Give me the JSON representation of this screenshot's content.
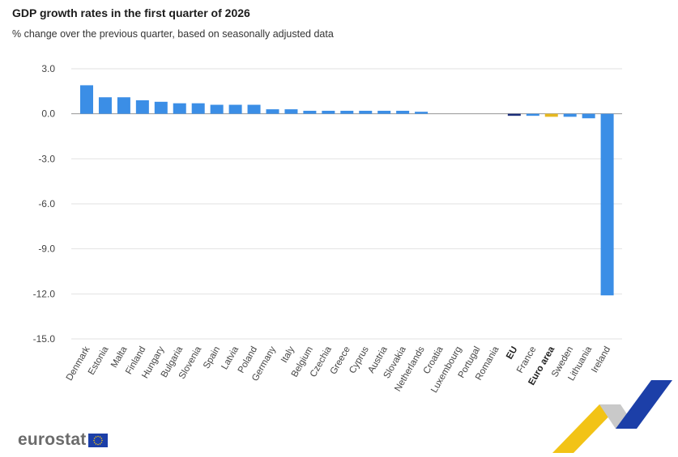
{
  "header": {
    "title": "GDP growth rates in the first quarter of 2026",
    "subtitle": "% change over the previous quarter, based on seasonally adjusted data"
  },
  "logo": {
    "text": "eurostat",
    "flag_icon": "eu-flag-icon"
  },
  "colors": {
    "country": "#3b8ee6",
    "eu": "#1c2f7a",
    "euro_area": "#e6b820",
    "grid": "#e2e2e2",
    "axis": "#9a9a9a",
    "decor_yellow": "#f2c316",
    "decor_blue": "#1c3fa8",
    "decor_grey": "#c9c9c9"
  },
  "chart_data": {
    "type": "bar",
    "title": "GDP growth rates in the first quarter of 2026",
    "subtitle": "% change over the previous quarter, based on seasonally adjusted data",
    "xlabel": "",
    "ylabel": "",
    "ylim": [
      -15,
      3
    ],
    "yticks": [
      3,
      0,
      -3,
      -6,
      -9,
      -12,
      -15
    ],
    "ytick_labels": [
      "3.0",
      "0.0",
      "-3.0",
      "-6.0",
      "-9.0",
      "-12.0",
      "-15.0"
    ],
    "grid": true,
    "legend": "none",
    "categories": [
      "Denmark",
      "Estonia",
      "Malta",
      "Finland",
      "Hungary",
      "Bulgaria",
      "Slovenia",
      "Spain",
      "Latvia",
      "Poland",
      "Germany",
      "Italy",
      "Belgium",
      "Czechia",
      "Greece",
      "Cyprus",
      "Austria",
      "Slovakia",
      "Netherlands",
      "Croatia",
      "Luxembourg",
      "Portugal",
      "Romania",
      "EU",
      "France",
      "Euro area",
      "Sweden",
      "Lithuania",
      "Ireland"
    ],
    "values": [
      1.9,
      1.1,
      1.1,
      0.9,
      0.8,
      0.7,
      0.7,
      0.6,
      0.6,
      0.6,
      0.3,
      0.3,
      0.2,
      0.2,
      0.2,
      0.2,
      0.2,
      0.2,
      0.1,
      0.0,
      0.0,
      0.0,
      0.0,
      -0.1,
      -0.1,
      -0.2,
      -0.2,
      -0.3,
      -12.1
    ],
    "highlight": {
      "EU": "eu",
      "Euro area": "euro_area"
    },
    "bold_categories": [
      "EU",
      "Euro area"
    ]
  }
}
